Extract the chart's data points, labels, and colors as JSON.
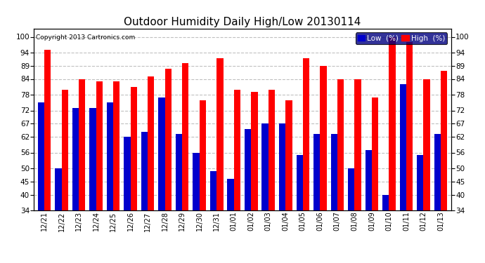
{
  "title": "Outdoor Humidity Daily High/Low 20130114",
  "copyright": "Copyright 2013 Cartronics.com",
  "dates": [
    "12/21",
    "12/22",
    "12/23",
    "12/24",
    "12/25",
    "12/26",
    "12/27",
    "12/28",
    "12/29",
    "12/30",
    "12/31",
    "01/01",
    "01/02",
    "01/03",
    "01/04",
    "01/05",
    "01/06",
    "01/07",
    "01/08",
    "01/09",
    "01/10",
    "01/11",
    "01/12",
    "01/13"
  ],
  "high": [
    95,
    80,
    84,
    83,
    83,
    81,
    85,
    88,
    90,
    76,
    92,
    80,
    79,
    80,
    76,
    92,
    89,
    84,
    84,
    77,
    100,
    98,
    84,
    87
  ],
  "low": [
    75,
    50,
    73,
    73,
    75,
    62,
    64,
    77,
    63,
    56,
    49,
    46,
    65,
    67,
    67,
    55,
    63,
    63,
    50,
    57,
    40,
    82,
    55,
    63
  ],
  "high_color": "#ff0000",
  "low_color": "#0000cc",
  "bg_color": "#ffffff",
  "grid_color": "#c0c0c0",
  "yticks": [
    34,
    40,
    45,
    50,
    56,
    62,
    67,
    72,
    78,
    84,
    89,
    94,
    100
  ],
  "ymin": 34,
  "ymax": 103,
  "bar_width": 0.38,
  "bar_bottom": 34,
  "legend_low_label": "Low  (%)",
  "legend_high_label": "High  (%)"
}
